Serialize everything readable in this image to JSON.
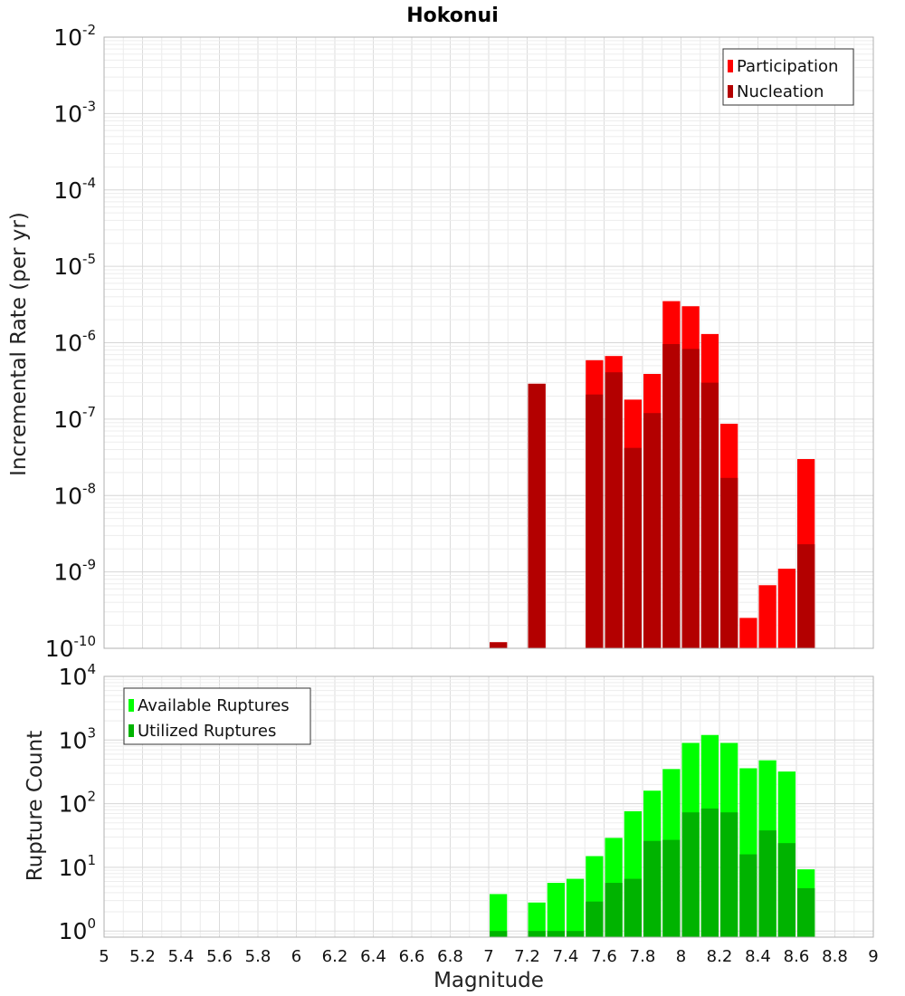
{
  "chart_data": [
    {
      "type": "bar",
      "title": "Hokonui",
      "xlabel": "",
      "ylabel": "Incremental Rate (per yr)",
      "yscale": "log",
      "ylim": [
        1e-10,
        0.01
      ],
      "xlim": [
        5,
        9
      ],
      "grid": true,
      "legend_position": "top-right",
      "ytick_labels": [
        {
          "base": "10",
          "exp": "-2"
        },
        {
          "base": "10",
          "exp": "-3"
        },
        {
          "base": "10",
          "exp": "-4"
        },
        {
          "base": "10",
          "exp": "-5"
        },
        {
          "base": "10",
          "exp": "-6"
        },
        {
          "base": "10",
          "exp": "-7"
        },
        {
          "base": "10",
          "exp": "-8"
        },
        {
          "base": "10",
          "exp": "-9"
        },
        {
          "base": "10",
          "exp": "-10"
        }
      ],
      "bin_width": 0.1,
      "x": [
        7.05,
        7.25,
        7.55,
        7.65,
        7.75,
        7.85,
        7.95,
        8.05,
        8.15,
        8.25,
        8.35,
        8.45,
        8.55,
        8.65
      ],
      "series": [
        {
          "name": "Participation",
          "color": "#ff0000",
          "values": [
            1.2e-10,
            2.9e-07,
            5.9e-07,
            6.7e-07,
            1.8e-07,
            3.9e-07,
            3.5e-06,
            3e-06,
            1.3e-06,
            8.7e-08,
            2.5e-10,
            6.7e-10,
            1.1e-09,
            3e-08
          ]
        },
        {
          "name": "Nucleation",
          "color": "#b30000",
          "values": [
            1.2e-10,
            2.9e-07,
            2.1e-07,
            4.1e-07,
            4.2e-08,
            1.2e-07,
            9.6e-07,
            8.3e-07,
            3e-07,
            1.7e-08,
            null,
            null,
            null,
            2.3e-09
          ]
        }
      ]
    },
    {
      "type": "bar",
      "title": "",
      "xlabel": "Magnitude",
      "ylabel": "Rupture Count",
      "yscale": "log",
      "ylim": [
        0.8,
        10000
      ],
      "xlim": [
        5,
        9
      ],
      "grid": true,
      "legend_position": "top-left",
      "ytick_labels": [
        {
          "base": "10",
          "exp": "4"
        },
        {
          "base": "10",
          "exp": "3"
        },
        {
          "base": "10",
          "exp": "2"
        },
        {
          "base": "10",
          "exp": "1"
        },
        {
          "base": "10",
          "exp": "0"
        }
      ],
      "xtick_labels": [
        "5",
        "5.2",
        "5.4",
        "5.6",
        "5.8",
        "6",
        "6.2",
        "6.4",
        "6.6",
        "6.8",
        "7",
        "7.2",
        "7.4",
        "7.6",
        "7.8",
        "8",
        "8.2",
        "8.4",
        "8.6",
        "8.8",
        "9"
      ],
      "bin_width": 0.1,
      "x": [
        7.05,
        7.25,
        7.35,
        7.45,
        7.55,
        7.65,
        7.75,
        7.85,
        7.95,
        8.05,
        8.15,
        8.25,
        8.35,
        8.45,
        8.55,
        8.65
      ],
      "series": [
        {
          "name": "Available Ruptures",
          "color": "#00ff00",
          "values": [
            3.8,
            2.8,
            5.7,
            6.6,
            15,
            29,
            76,
            160,
            350,
            900,
            1200,
            900,
            360,
            480,
            320,
            9.3
          ]
        },
        {
          "name": "Utilized Ruptures",
          "color": "#00b300",
          "values": [
            1,
            1,
            1,
            1,
            2.9,
            5.7,
            6.6,
            26,
            27,
            73,
            84,
            73,
            16,
            38,
            24,
            4.7
          ]
        }
      ]
    }
  ]
}
